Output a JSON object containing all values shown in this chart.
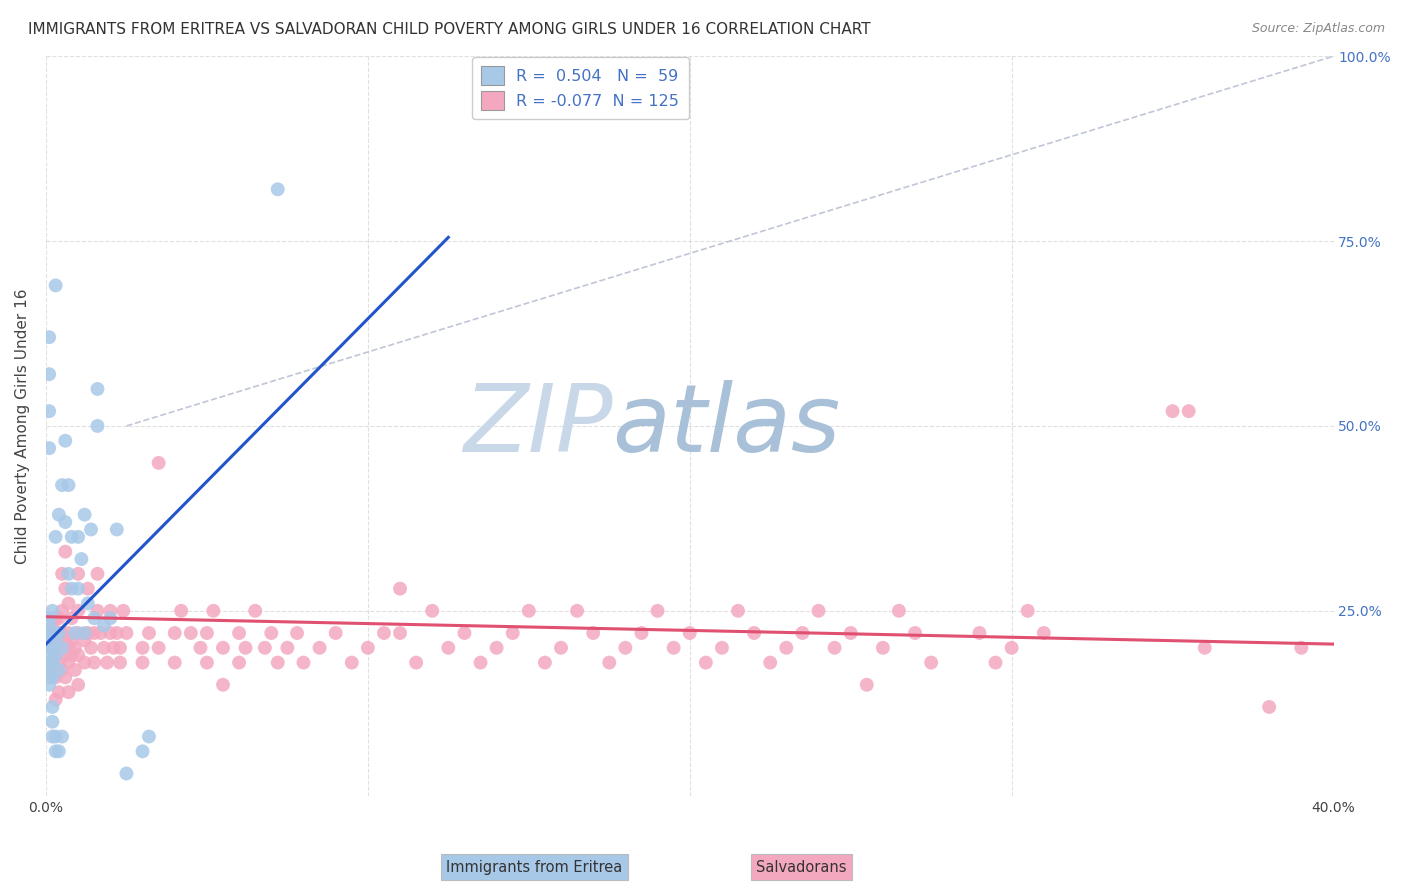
{
  "title": "IMMIGRANTS FROM ERITREA VS SALVADORAN CHILD POVERTY AMONG GIRLS UNDER 16 CORRELATION CHART",
  "source": "Source: ZipAtlas.com",
  "ylabel": "Child Poverty Among Girls Under 16",
  "xlim": [
    0.0,
    0.4
  ],
  "ylim": [
    0.0,
    1.0
  ],
  "blue_R": 0.504,
  "blue_N": 59,
  "pink_R": -0.077,
  "pink_N": 125,
  "blue_color": "#a8c8e8",
  "pink_color": "#f4a8c0",
  "blue_line_color": "#2255cc",
  "pink_line_color": "#e05070",
  "right_tick_color": "#4472c4",
  "grid_color": "#cccccc",
  "background_color": "#ffffff",
  "watermark_zip_color": "#c8d8e8",
  "watermark_atlas_color": "#a8c0d8",
  "title_fontsize": 11,
  "axis_label_fontsize": 11,
  "tick_fontsize": 10,
  "blue_line_x": [
    0.0,
    0.125
  ],
  "blue_line_y": [
    0.205,
    0.755
  ],
  "pink_line_x": [
    0.0,
    0.4
  ],
  "pink_line_y": [
    0.242,
    0.205
  ],
  "diag_line_x": [
    0.025,
    0.4
  ],
  "diag_line_y": [
    0.5,
    1.0
  ],
  "blue_pts": [
    [
      0.001,
      0.22
    ],
    [
      0.001,
      0.19
    ],
    [
      0.001,
      0.21
    ],
    [
      0.001,
      0.18
    ],
    [
      0.001,
      0.2
    ],
    [
      0.001,
      0.23
    ],
    [
      0.001,
      0.16
    ],
    [
      0.001,
      0.15
    ],
    [
      0.001,
      0.24
    ],
    [
      0.001,
      0.17
    ],
    [
      0.002,
      0.22
    ],
    [
      0.002,
      0.2
    ],
    [
      0.002,
      0.18
    ],
    [
      0.002,
      0.16
    ],
    [
      0.002,
      0.08
    ],
    [
      0.002,
      0.1
    ],
    [
      0.002,
      0.12
    ],
    [
      0.002,
      0.25
    ],
    [
      0.003,
      0.21
    ],
    [
      0.003,
      0.19
    ],
    [
      0.003,
      0.06
    ],
    [
      0.003,
      0.08
    ],
    [
      0.003,
      0.35
    ],
    [
      0.004,
      0.22
    ],
    [
      0.004,
      0.38
    ],
    [
      0.004,
      0.17
    ],
    [
      0.004,
      0.06
    ],
    [
      0.005,
      0.42
    ],
    [
      0.005,
      0.2
    ],
    [
      0.005,
      0.08
    ],
    [
      0.006,
      0.48
    ],
    [
      0.006,
      0.37
    ],
    [
      0.007,
      0.42
    ],
    [
      0.007,
      0.3
    ],
    [
      0.008,
      0.35
    ],
    [
      0.008,
      0.28
    ],
    [
      0.009,
      0.22
    ],
    [
      0.01,
      0.35
    ],
    [
      0.01,
      0.28
    ],
    [
      0.011,
      0.32
    ],
    [
      0.012,
      0.38
    ],
    [
      0.012,
      0.22
    ],
    [
      0.013,
      0.26
    ],
    [
      0.014,
      0.36
    ],
    [
      0.015,
      0.24
    ],
    [
      0.016,
      0.55
    ],
    [
      0.016,
      0.5
    ],
    [
      0.018,
      0.23
    ],
    [
      0.02,
      0.24
    ],
    [
      0.022,
      0.36
    ],
    [
      0.025,
      0.03
    ],
    [
      0.03,
      0.06
    ],
    [
      0.032,
      0.08
    ],
    [
      0.003,
      0.69
    ],
    [
      0.001,
      0.62
    ],
    [
      0.001,
      0.57
    ],
    [
      0.001,
      0.52
    ],
    [
      0.001,
      0.47
    ],
    [
      0.072,
      0.82
    ]
  ],
  "pink_pts": [
    [
      0.002,
      0.2
    ],
    [
      0.002,
      0.17
    ],
    [
      0.002,
      0.22
    ],
    [
      0.002,
      0.18
    ],
    [
      0.002,
      0.23
    ],
    [
      0.003,
      0.19
    ],
    [
      0.003,
      0.21
    ],
    [
      0.003,
      0.16
    ],
    [
      0.003,
      0.24
    ],
    [
      0.003,
      0.13
    ],
    [
      0.004,
      0.2
    ],
    [
      0.004,
      0.18
    ],
    [
      0.004,
      0.22
    ],
    [
      0.004,
      0.24
    ],
    [
      0.004,
      0.14
    ],
    [
      0.005,
      0.2
    ],
    [
      0.005,
      0.17
    ],
    [
      0.005,
      0.22
    ],
    [
      0.005,
      0.25
    ],
    [
      0.005,
      0.3
    ],
    [
      0.006,
      0.19
    ],
    [
      0.006,
      0.21
    ],
    [
      0.006,
      0.16
    ],
    [
      0.006,
      0.28
    ],
    [
      0.006,
      0.33
    ],
    [
      0.007,
      0.2
    ],
    [
      0.007,
      0.18
    ],
    [
      0.007,
      0.22
    ],
    [
      0.007,
      0.26
    ],
    [
      0.007,
      0.14
    ],
    [
      0.008,
      0.19
    ],
    [
      0.008,
      0.21
    ],
    [
      0.008,
      0.24
    ],
    [
      0.009,
      0.2
    ],
    [
      0.009,
      0.17
    ],
    [
      0.01,
      0.22
    ],
    [
      0.01,
      0.19
    ],
    [
      0.01,
      0.25
    ],
    [
      0.01,
      0.3
    ],
    [
      0.01,
      0.15
    ],
    [
      0.012,
      0.21
    ],
    [
      0.012,
      0.18
    ],
    [
      0.013,
      0.28
    ],
    [
      0.013,
      0.22
    ],
    [
      0.014,
      0.2
    ],
    [
      0.015,
      0.22
    ],
    [
      0.015,
      0.18
    ],
    [
      0.016,
      0.3
    ],
    [
      0.016,
      0.25
    ],
    [
      0.017,
      0.22
    ],
    [
      0.018,
      0.2
    ],
    [
      0.019,
      0.18
    ],
    [
      0.02,
      0.22
    ],
    [
      0.02,
      0.25
    ],
    [
      0.021,
      0.2
    ],
    [
      0.022,
      0.22
    ],
    [
      0.023,
      0.2
    ],
    [
      0.023,
      0.18
    ],
    [
      0.024,
      0.25
    ],
    [
      0.025,
      0.22
    ],
    [
      0.03,
      0.2
    ],
    [
      0.03,
      0.18
    ],
    [
      0.032,
      0.22
    ],
    [
      0.035,
      0.2
    ],
    [
      0.035,
      0.45
    ],
    [
      0.04,
      0.22
    ],
    [
      0.04,
      0.18
    ],
    [
      0.042,
      0.25
    ],
    [
      0.045,
      0.22
    ],
    [
      0.048,
      0.2
    ],
    [
      0.05,
      0.22
    ],
    [
      0.05,
      0.18
    ],
    [
      0.052,
      0.25
    ],
    [
      0.055,
      0.2
    ],
    [
      0.055,
      0.15
    ],
    [
      0.06,
      0.22
    ],
    [
      0.06,
      0.18
    ],
    [
      0.062,
      0.2
    ],
    [
      0.065,
      0.25
    ],
    [
      0.068,
      0.2
    ],
    [
      0.07,
      0.22
    ],
    [
      0.072,
      0.18
    ],
    [
      0.075,
      0.2
    ],
    [
      0.078,
      0.22
    ],
    [
      0.08,
      0.18
    ],
    [
      0.085,
      0.2
    ],
    [
      0.09,
      0.22
    ],
    [
      0.095,
      0.18
    ],
    [
      0.1,
      0.2
    ],
    [
      0.105,
      0.22
    ],
    [
      0.11,
      0.28
    ],
    [
      0.11,
      0.22
    ],
    [
      0.115,
      0.18
    ],
    [
      0.12,
      0.25
    ],
    [
      0.125,
      0.2
    ],
    [
      0.13,
      0.22
    ],
    [
      0.135,
      0.18
    ],
    [
      0.14,
      0.2
    ],
    [
      0.145,
      0.22
    ],
    [
      0.15,
      0.25
    ],
    [
      0.155,
      0.18
    ],
    [
      0.16,
      0.2
    ],
    [
      0.165,
      0.25
    ],
    [
      0.17,
      0.22
    ],
    [
      0.175,
      0.18
    ],
    [
      0.18,
      0.2
    ],
    [
      0.185,
      0.22
    ],
    [
      0.19,
      0.25
    ],
    [
      0.195,
      0.2
    ],
    [
      0.2,
      0.22
    ],
    [
      0.205,
      0.18
    ],
    [
      0.21,
      0.2
    ],
    [
      0.215,
      0.25
    ],
    [
      0.22,
      0.22
    ],
    [
      0.225,
      0.18
    ],
    [
      0.23,
      0.2
    ],
    [
      0.235,
      0.22
    ],
    [
      0.24,
      0.25
    ],
    [
      0.245,
      0.2
    ],
    [
      0.25,
      0.22
    ],
    [
      0.255,
      0.15
    ],
    [
      0.26,
      0.2
    ],
    [
      0.265,
      0.25
    ],
    [
      0.27,
      0.22
    ],
    [
      0.275,
      0.18
    ],
    [
      0.29,
      0.22
    ],
    [
      0.295,
      0.18
    ],
    [
      0.3,
      0.2
    ],
    [
      0.305,
      0.25
    ],
    [
      0.31,
      0.22
    ],
    [
      0.35,
      0.52
    ],
    [
      0.355,
      0.52
    ],
    [
      0.36,
      0.2
    ],
    [
      0.38,
      0.12
    ],
    [
      0.39,
      0.2
    ]
  ]
}
